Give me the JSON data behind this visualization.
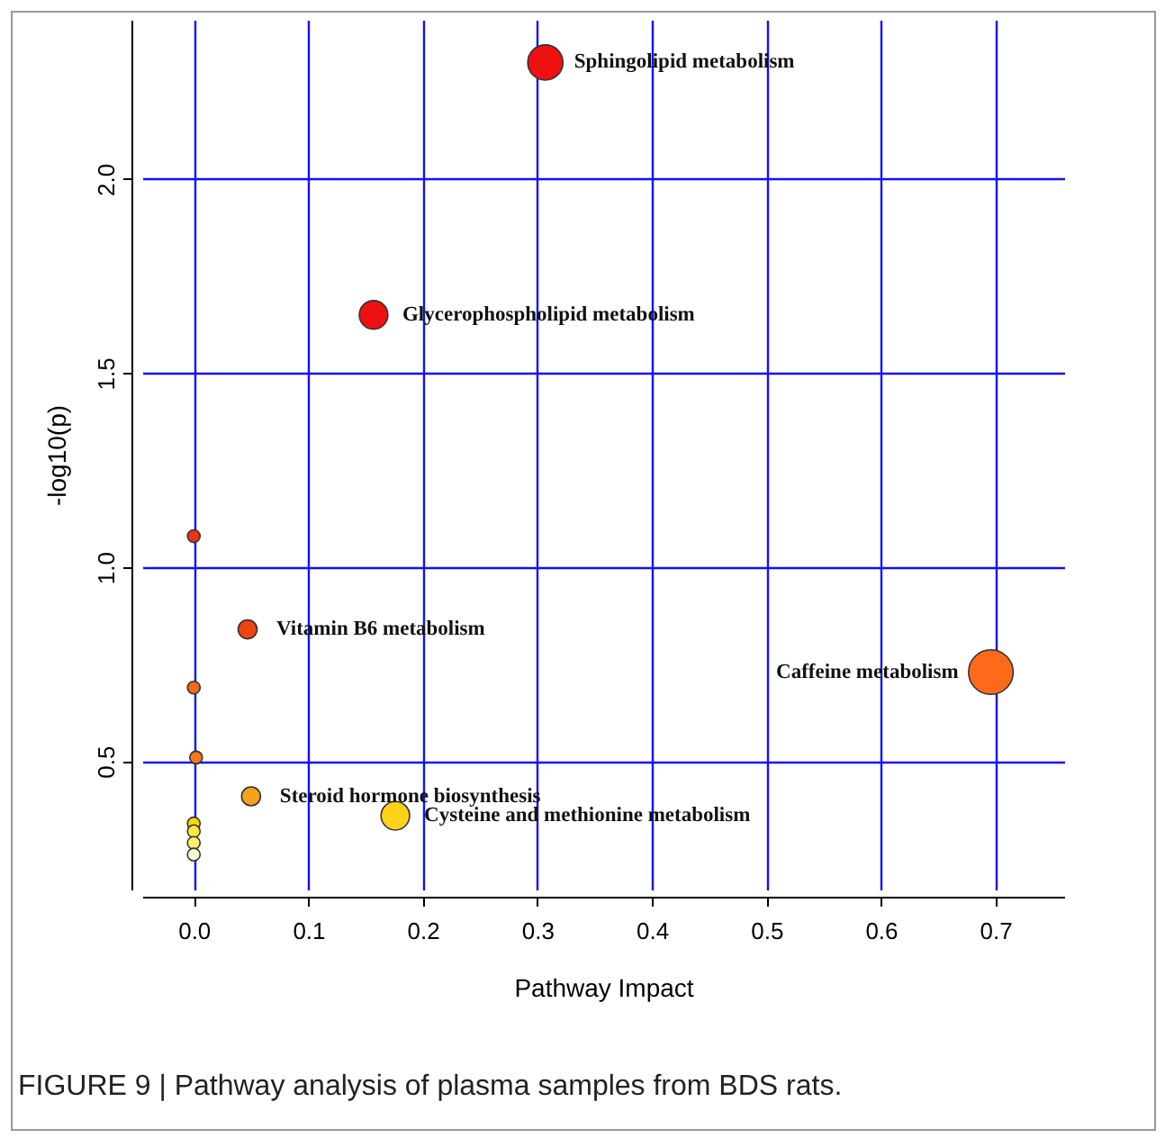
{
  "chart_data": {
    "type": "bubble",
    "xlabel": "Pathway Impact",
    "ylabel": "-log10(p)",
    "xlim": [
      -0.045,
      0.76
    ],
    "ylim": [
      0.17,
      2.41
    ],
    "xticks": [
      {
        "value": 0,
        "label": "0.0"
      },
      0.1,
      0.2,
      0.3,
      0.4,
      0.5,
      0.6,
      0.7
    ],
    "yticks": [
      0.5,
      {
        "value": 1,
        "label": "1.0"
      },
      1.5,
      {
        "value": 2,
        "label": "2.0"
      }
    ],
    "grid": true,
    "marker": "circle",
    "series": [
      {
        "x": [
          0.307,
          0.157,
          0.0,
          0.047,
          0.696,
          0.0,
          0.002,
          0.05,
          0.176,
          0.0,
          0.0,
          0.0,
          0.0
        ],
        "values": [
          2.3,
          1.65,
          1.08,
          0.84,
          0.73,
          0.69,
          0.51,
          0.41,
          0.36,
          0.34,
          0.32,
          0.29,
          0.26
        ],
        "sizes": [
          0.62,
          0.41,
          0.08,
          0.18,
          1,
          0.08,
          0.08,
          0.18,
          0.41,
          0.08,
          0.08,
          0.08,
          0.08
        ],
        "colors": [
          "#ee1111",
          "#ee1111",
          "#ee3311",
          "#ee4411",
          "#ff6a1a",
          "#f06a1a",
          "#f47a1a",
          "#f5a21b",
          "#ffd21a",
          "#ffd700",
          "#ffe840",
          "#fff070",
          "#fffad0"
        ]
      }
    ],
    "annotations": [
      {
        "text": "Sphingolipid metabolism",
        "x": 0.307,
        "y": 2.3
      },
      {
        "text": "Glycerophospholipid metabolism",
        "x": 0.157,
        "y": 1.65
      },
      {
        "text": "Vitamin B6 metabolism",
        "x": 0.047,
        "y": 0.84
      },
      {
        "text": "Caffeine metabolism",
        "x": 0.696,
        "y": 0.73
      },
      {
        "text": "Steroid hormone biosynthesis",
        "x": 0.05,
        "y": 0.41
      },
      {
        "text": "Cysteine and methionine metabolism",
        "x": 0.176,
        "y": 0.36
      },
      "FIGURE 9 | Pathway analysis of plasma samples from BDS rats."
    ]
  }
}
